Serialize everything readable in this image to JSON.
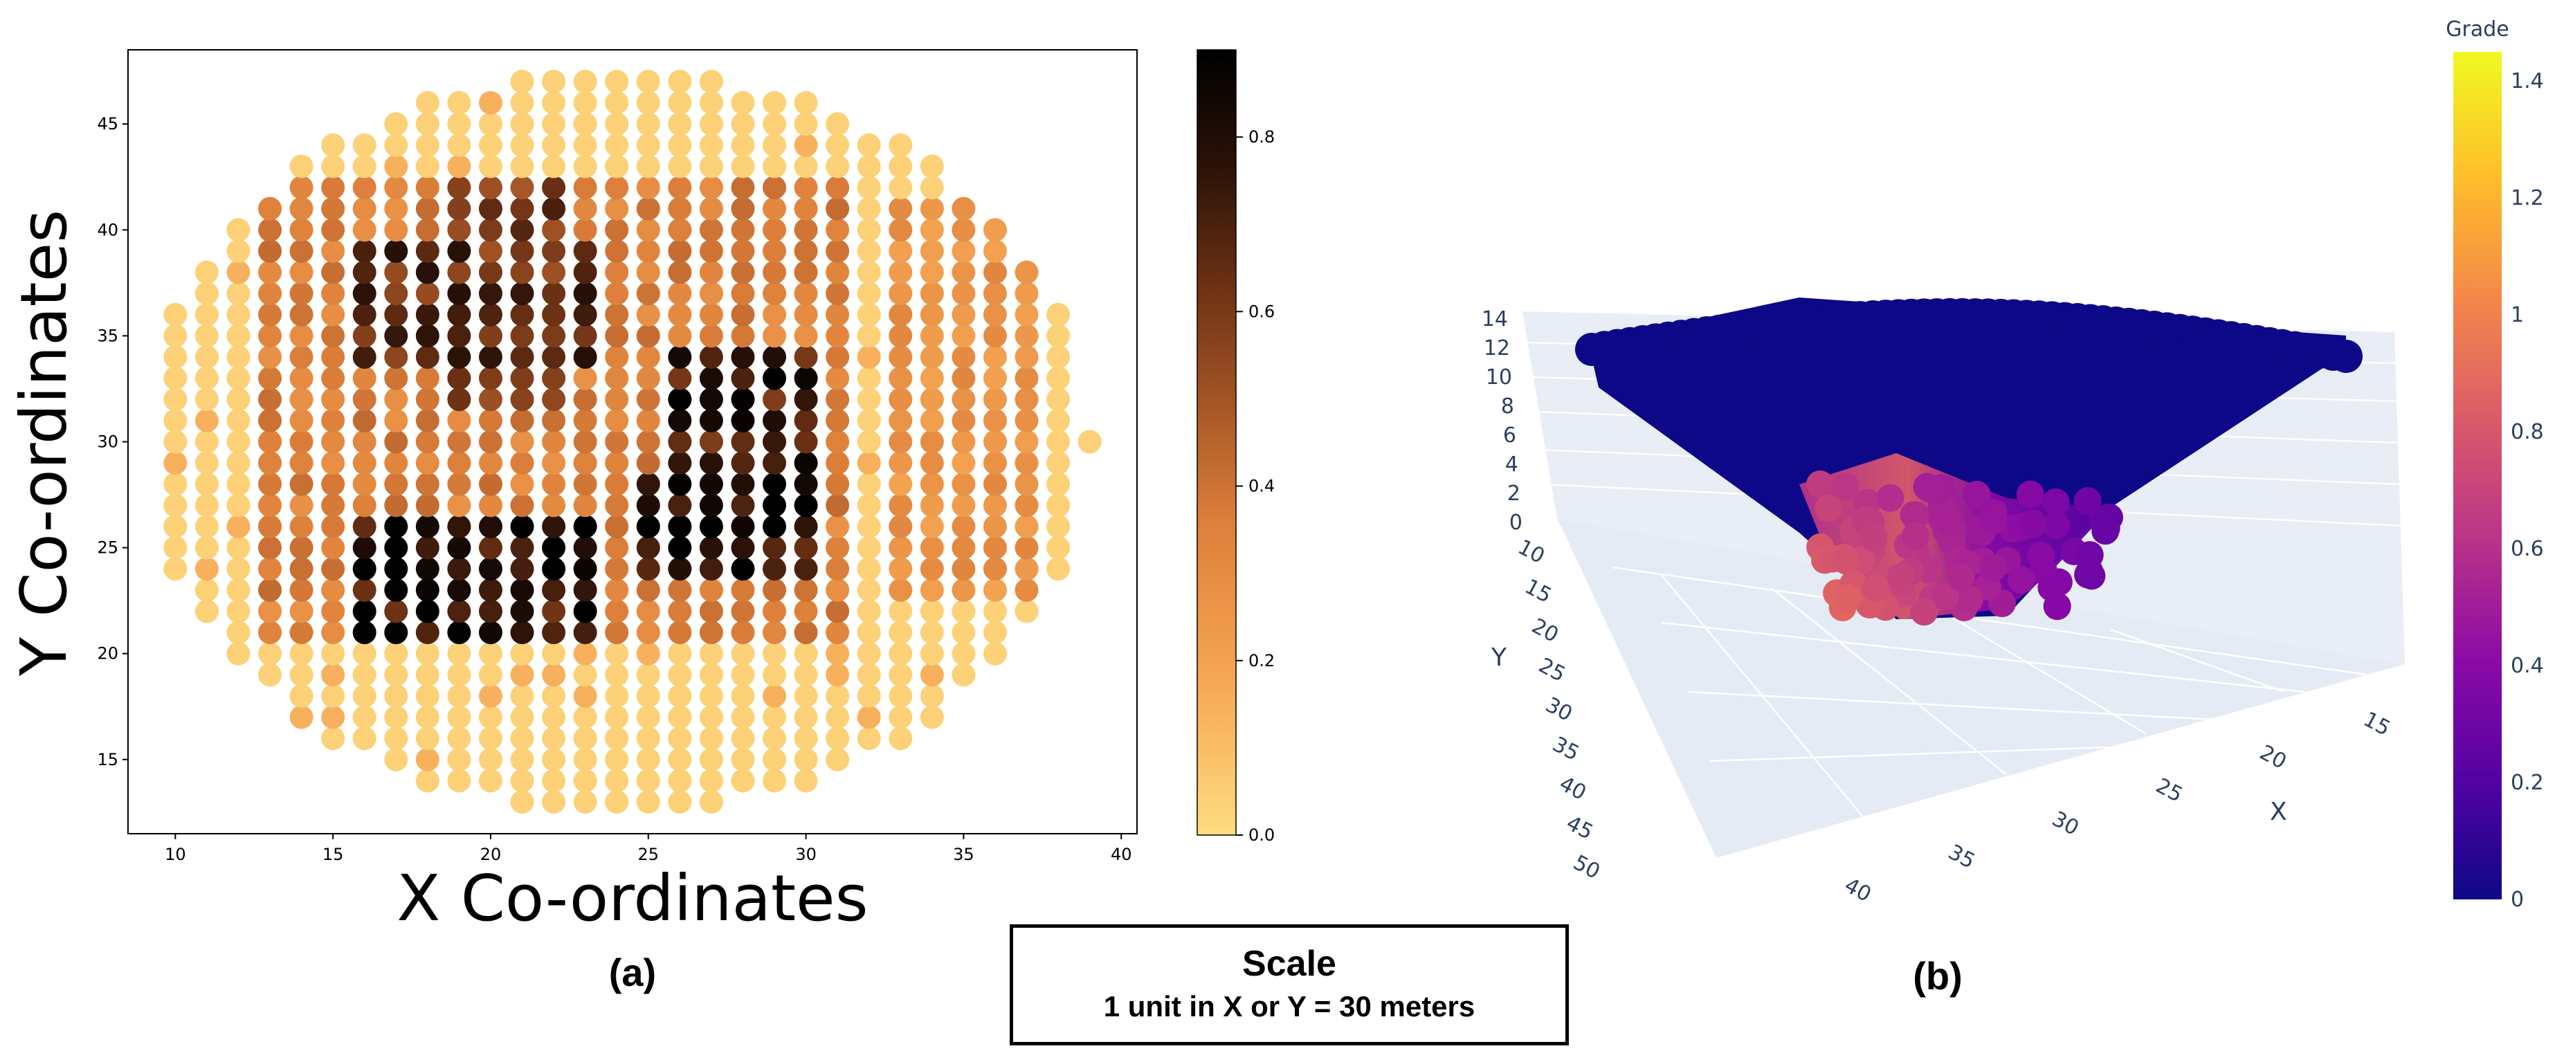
{
  "chart_data": [
    {
      "type": "scatter",
      "panel_label": "(a)",
      "xlabel": "X Co-ordinates",
      "ylabel": "Y Co-ordinates",
      "xlim": [
        8.5,
        40.5
      ],
      "ylim": [
        11.5,
        48.5
      ],
      "x_ticks": [
        "10",
        "15",
        "20",
        "25",
        "30",
        "35",
        "40"
      ],
      "y_ticks": [
        "15",
        "20",
        "25",
        "30",
        "35",
        "40",
        "45"
      ],
      "colorbar": {
        "min": 0.0,
        "max": 0.9,
        "ticks": [
          "0.0",
          "0.2",
          "0.4",
          "0.6",
          "0.8"
        ],
        "colors": [
          "#fddc80",
          "#f6a653",
          "#dd7f3a",
          "#a55526",
          "#6c3114",
          "#2b1208",
          "#000000"
        ]
      },
      "ellipse": {
        "cx": 24.5,
        "cy": 30.0,
        "rx": 15.0,
        "ry": 17.5
      },
      "zones": [
        {
          "x": [
            13,
            19
          ],
          "y": [
            26,
            38
          ],
          "value": 0.18
        },
        {
          "x": [
            13,
            31
          ],
          "y": [
            21,
            42
          ],
          "value": 0.3
        },
        {
          "x": [
            16,
            23
          ],
          "y": [
            34,
            39
          ],
          "value": 0.62
        },
        {
          "x": [
            19,
            22
          ],
          "y": [
            32,
            42
          ],
          "value": 0.55
        },
        {
          "x": [
            16,
            23
          ],
          "y": [
            21,
            26
          ],
          "value": 0.78
        },
        {
          "x": [
            25,
            30
          ],
          "y": [
            24,
            28
          ],
          "value": 0.82
        },
        {
          "x": [
            26,
            30
          ],
          "y": [
            29,
            34
          ],
          "value": 0.72
        },
        {
          "x": [
            33,
            37
          ],
          "y": [
            23,
            41
          ],
          "value": 0.22
        }
      ]
    },
    {
      "type": "scatter3d",
      "panel_label": "(b)",
      "colorbar_title": "Grade",
      "colorbar": {
        "min": 0,
        "max": 1.45,
        "ticks": [
          "0",
          "0.2",
          "0.4",
          "0.6",
          "0.8",
          "1",
          "1.2",
          "1.4"
        ],
        "colors": [
          "#0d0887",
          "#5302a3",
          "#8b0aa5",
          "#b83289",
          "#db5c68",
          "#f48849",
          "#febd2a",
          "#f0f921"
        ]
      },
      "z_axis": {
        "label": "",
        "ticks": [
          "0",
          "2",
          "4",
          "6",
          "8",
          "10",
          "12",
          "14"
        ]
      },
      "y_axis": {
        "label": "Y",
        "ticks": [
          "10",
          "15",
          "20",
          "25",
          "30",
          "35",
          "40",
          "45",
          "50"
        ]
      },
      "x_axis": {
        "label": "X",
        "ticks": [
          "15",
          "20",
          "25",
          "30",
          "35",
          "40"
        ]
      },
      "description_values": {
        "top_surface_grade": 0.0,
        "bottom_peak_grade": 1.1
      }
    }
  ],
  "scale_box": {
    "title": "Scale",
    "note": "1 unit in X or Y = 30 meters"
  }
}
